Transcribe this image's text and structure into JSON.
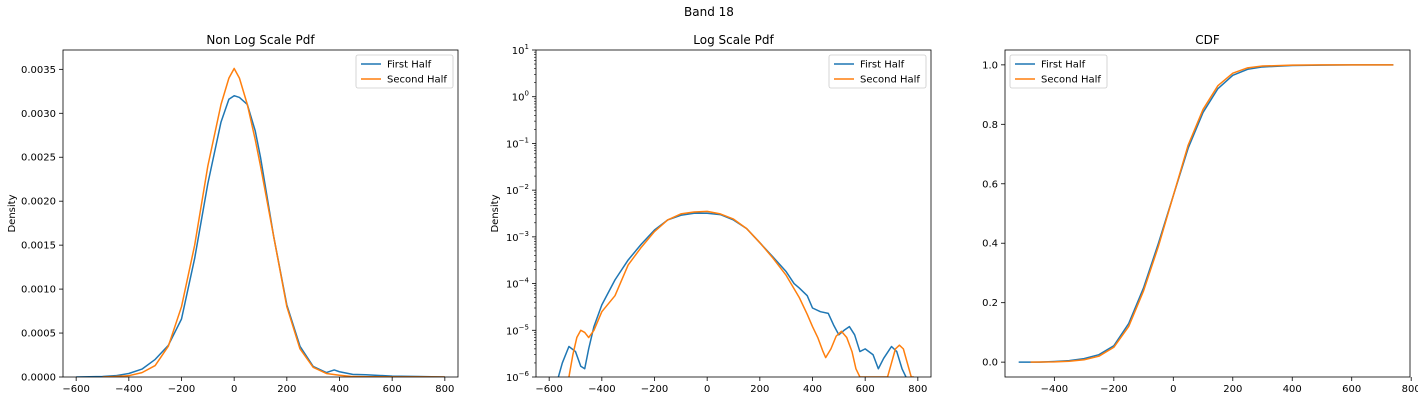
{
  "suptitle": "Band 18",
  "colors": {
    "first": "#1f77b4",
    "second": "#ff7f0e"
  },
  "chart_data": [
    {
      "type": "line",
      "title": "Non Log Scale Pdf",
      "xlabel": "",
      "ylabel": "Density",
      "xlim": [
        -650,
        850
      ],
      "ylim": [
        0,
        0.00372
      ],
      "yscale": "linear",
      "xticks": [
        -600,
        -400,
        -200,
        0,
        200,
        400,
        600,
        800
      ],
      "xtick_labels": [
        "−600",
        "−400",
        "−200",
        "0",
        "200",
        "400",
        "600",
        "800"
      ],
      "yticks": [
        0,
        0.0005,
        0.001,
        0.0015,
        0.002,
        0.0025,
        0.003,
        0.0035
      ],
      "ytick_labels": [
        "0.0000",
        "0.0005",
        "0.0010",
        "0.0015",
        "0.0020",
        "0.0025",
        "0.0030",
        "0.0035"
      ],
      "legend": "top-right",
      "series": [
        {
          "name": "First Half",
          "color": "#1f77b4",
          "x": [
            -600,
            -500,
            -450,
            -400,
            -350,
            -300,
            -250,
            -200,
            -150,
            -100,
            -50,
            -20,
            0,
            20,
            50,
            80,
            100,
            150,
            200,
            250,
            300,
            350,
            380,
            400,
            450,
            500,
            600,
            700,
            800
          ],
          "y": [
            0,
            5e-06,
            1.5e-05,
            4e-05,
            9e-05,
            0.0002,
            0.00036,
            0.00066,
            0.00135,
            0.0022,
            0.0029,
            0.00316,
            0.0032,
            0.00318,
            0.0031,
            0.0028,
            0.0025,
            0.0016,
            0.00082,
            0.00035,
            0.00012,
            5e-05,
            8e-05,
            6e-05,
            3e-05,
            2.5e-05,
            1e-05,
            5e-06,
            0
          ]
        },
        {
          "name": "Second Half",
          "color": "#ff7f0e",
          "x": [
            -500,
            -450,
            -400,
            -350,
            -300,
            -250,
            -200,
            -150,
            -100,
            -50,
            -20,
            0,
            20,
            50,
            80,
            100,
            150,
            200,
            250,
            300,
            350,
            400,
            450,
            500,
            600,
            700,
            800
          ],
          "y": [
            0,
            5e-06,
            1.5e-05,
            5e-05,
            0.00013,
            0.00035,
            0.0008,
            0.0015,
            0.0024,
            0.0031,
            0.0034,
            0.00351,
            0.0034,
            0.0031,
            0.0027,
            0.0024,
            0.0016,
            0.0008,
            0.00032,
            0.00011,
            4e-05,
            2e-05,
            5e-06,
            3e-06,
            2e-06,
            2e-06,
            0
          ]
        }
      ]
    },
    {
      "type": "line",
      "title": "Log Scale Pdf",
      "xlabel": "",
      "ylabel": "Density",
      "xlim": [
        -650,
        850
      ],
      "ylim": [
        1e-06,
        10
      ],
      "yscale": "log",
      "xticks": [
        -600,
        -400,
        -200,
        0,
        200,
        400,
        600,
        800
      ],
      "xtick_labels": [
        "−600",
        "−400",
        "−200",
        "0",
        "200",
        "400",
        "600",
        "800"
      ],
      "yticks": [
        1e-06,
        1e-05,
        0.0001,
        0.001,
        0.01,
        0.1,
        1,
        10
      ],
      "ytick_labels": [
        {
          "base": "10",
          "exp": "−6"
        },
        {
          "base": "10",
          "exp": "−5"
        },
        {
          "base": "10",
          "exp": "−4"
        },
        {
          "base": "10",
          "exp": "−3"
        },
        {
          "base": "10",
          "exp": "−2"
        },
        {
          "base": "10",
          "exp": "−1"
        },
        {
          "base": "10",
          "exp": "0"
        },
        {
          "base": "10",
          "exp": "1"
        }
      ],
      "legend": "top-right",
      "series": [
        {
          "name": "First Half",
          "color": "#1f77b4",
          "x": [
            -565,
            -550,
            -525,
            -500,
            -480,
            -465,
            -450,
            -430,
            -400,
            -350,
            -300,
            -250,
            -200,
            -150,
            -100,
            -50,
            0,
            50,
            100,
            150,
            200,
            250,
            300,
            330,
            350,
            380,
            400,
            430,
            460,
            480,
            500,
            520,
            540,
            560,
            580,
            600,
            630,
            650,
            670,
            700,
            720,
            740,
            755
          ],
          "y": [
            1e-06,
            2e-06,
            4.5e-06,
            3.5e-06,
            1.7e-06,
            1.5e-06,
            4e-06,
            1.2e-05,
            3.5e-05,
            0.00012,
            0.00032,
            0.0007,
            0.0014,
            0.0023,
            0.0029,
            0.0032,
            0.0032,
            0.003,
            0.0023,
            0.0015,
            0.00075,
            0.00037,
            0.00018,
            0.0001,
            8e-05,
            5.5e-05,
            3e-05,
            2.5e-05,
            2.3e-05,
            1.3e-05,
            8e-06,
            1e-05,
            1.2e-05,
            8e-06,
            3.5e-06,
            4e-06,
            3e-06,
            1.5e-06,
            2.5e-06,
            4.5e-06,
            3.5e-06,
            1.5e-06,
            1e-06
          ]
        },
        {
          "name": "Second Half",
          "color": "#ff7f0e",
          "x": [
            -525,
            -510,
            -495,
            -480,
            -465,
            -450,
            -430,
            -400,
            -350,
            -300,
            -250,
            -200,
            -150,
            -100,
            -50,
            0,
            50,
            100,
            150,
            200,
            250,
            300,
            350,
            380,
            400,
            420,
            440,
            450,
            470,
            490,
            510,
            530,
            550,
            565,
            580,
            590,
            685,
            700,
            715,
            730,
            745,
            760,
            775,
            785
          ],
          "y": [
            1e-06,
            3e-06,
            7e-06,
            1e-05,
            9e-06,
            7e-06,
            1e-05,
            2.5e-05,
            5.5e-05,
            0.00025,
            0.0006,
            0.0013,
            0.0023,
            0.0031,
            0.0034,
            0.00351,
            0.0031,
            0.0024,
            0.0015,
            0.00075,
            0.00035,
            0.00015,
            5e-05,
            2.2e-05,
            1.2e-05,
            7e-06,
            3.5e-06,
            2.6e-06,
            4e-06,
            7.5e-06,
            9.5e-06,
            7e-06,
            3.5e-06,
            1.5e-06,
            1e-06,
            1e-06,
            1e-06,
            2e-06,
            4e-06,
            4.8e-06,
            4e-06,
            2e-06,
            1e-06,
            1e-06
          ]
        }
      ]
    },
    {
      "type": "line",
      "title": "CDF",
      "xlabel": "",
      "ylabel": "",
      "xlim": [
        -566,
        796
      ],
      "ylim": [
        -0.05,
        1.05
      ],
      "yscale": "linear",
      "xticks": [
        -400,
        -200,
        0,
        200,
        400,
        600,
        800
      ],
      "xtick_labels": [
        "−400",
        "−200",
        "0",
        "200",
        "400",
        "600",
        "800"
      ],
      "yticks": [
        0,
        0.2,
        0.4,
        0.6,
        0.8,
        1.0
      ],
      "ytick_labels": [
        "0.0",
        "0.2",
        "0.4",
        "0.6",
        "0.8",
        "1.0"
      ],
      "legend": "top-left",
      "series": [
        {
          "name": "First Half",
          "color": "#1f77b4",
          "x": [
            -520,
            -450,
            -400,
            -350,
            -300,
            -250,
            -200,
            -150,
            -100,
            -50,
            0,
            50,
            100,
            150,
            200,
            250,
            300,
            400,
            500,
            600,
            740
          ],
          "y": [
            0,
            0,
            0.002,
            0.005,
            0.012,
            0.025,
            0.055,
            0.13,
            0.25,
            0.4,
            0.56,
            0.72,
            0.84,
            0.92,
            0.965,
            0.985,
            0.993,
            0.998,
            0.999,
            1.0,
            1.0
          ]
        },
        {
          "name": "Second Half",
          "color": "#ff7f0e",
          "x": [
            -480,
            -400,
            -350,
            -300,
            -250,
            -200,
            -150,
            -100,
            -50,
            0,
            50,
            100,
            150,
            200,
            250,
            300,
            400,
            500,
            600,
            740
          ],
          "y": [
            0,
            0.001,
            0.003,
            0.008,
            0.02,
            0.05,
            0.12,
            0.24,
            0.39,
            0.56,
            0.73,
            0.85,
            0.93,
            0.972,
            0.99,
            0.996,
            0.999,
            1.0,
            1.0,
            1.0
          ]
        }
      ]
    }
  ]
}
